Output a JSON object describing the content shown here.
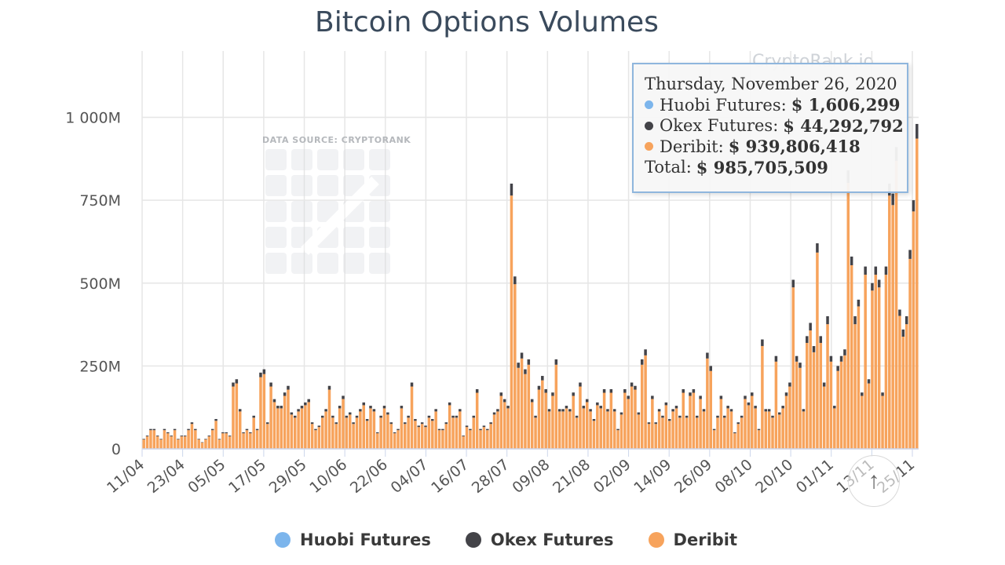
{
  "chart_data": {
    "type": "bar",
    "stacked": true,
    "title": "Bitcoin Options Volumes",
    "xlabel": "",
    "ylabel": "",
    "ylim": [
      0,
      1200000000
    ],
    "y_ticks": [
      0,
      250000000,
      500000000,
      750000000,
      1000000000
    ],
    "y_tick_labels": [
      "0",
      "250M",
      "500M",
      "750M",
      "1 000M"
    ],
    "x_tick_labels": [
      "11/04",
      "23/04",
      "05/05",
      "17/05",
      "29/05",
      "10/06",
      "22/06",
      "04/07",
      "16/07",
      "28/07",
      "09/08",
      "21/08",
      "02/09",
      "14/09",
      "26/09",
      "08/10",
      "20/10",
      "01/11",
      "13/11",
      "25/11"
    ],
    "grid": true,
    "legend_position": "bottom",
    "series": [
      {
        "name": "Huobi Futures",
        "color": "#7cb5ec"
      },
      {
        "name": "Okex Futures",
        "color": "#434348"
      },
      {
        "name": "Deribit",
        "color": "#f7a35c"
      }
    ],
    "approx_totals_M": [
      30,
      40,
      60,
      60,
      40,
      30,
      60,
      50,
      40,
      60,
      30,
      40,
      40,
      60,
      80,
      60,
      30,
      20,
      30,
      40,
      60,
      90,
      30,
      50,
      50,
      40,
      200,
      210,
      120,
      50,
      60,
      50,
      100,
      60,
      230,
      240,
      80,
      200,
      150,
      130,
      130,
      170,
      190,
      110,
      100,
      120,
      130,
      140,
      150,
      80,
      60,
      70,
      100,
      120,
      190,
      100,
      80,
      130,
      160,
      100,
      110,
      80,
      100,
      120,
      140,
      90,
      130,
      120,
      50,
      100,
      130,
      110,
      80,
      50,
      60,
      130,
      80,
      100,
      200,
      90,
      70,
      80,
      70,
      100,
      90,
      120,
      60,
      60,
      80,
      140,
      100,
      100,
      120,
      40,
      70,
      60,
      100,
      180,
      60,
      70,
      60,
      80,
      110,
      120,
      170,
      150,
      130,
      800,
      520,
      260,
      290,
      240,
      270,
      150,
      100,
      190,
      220,
      180,
      120,
      170,
      270,
      120,
      120,
      130,
      120,
      170,
      100,
      200,
      130,
      150,
      120,
      90,
      140,
      130,
      180,
      120,
      180,
      120,
      60,
      110,
      180,
      160,
      200,
      190,
      110,
      270,
      300,
      80,
      160,
      80,
      120,
      100,
      140,
      90,
      120,
      130,
      100,
      180,
      100,
      170,
      180,
      100,
      160,
      120,
      290,
      250,
      60,
      100,
      160,
      100,
      130,
      120,
      50,
      80,
      100,
      160,
      140,
      170,
      130,
      60,
      330,
      120,
      120,
      100,
      280,
      110,
      130,
      170,
      200,
      510,
      280,
      260,
      120,
      340,
      380,
      310,
      620,
      340,
      200,
      400,
      280,
      130,
      250,
      280,
      300,
      840,
      580,
      400,
      450,
      170,
      550,
      210,
      500,
      550,
      510,
      170,
      550,
      800,
      770,
      910,
      420,
      360,
      400,
      600,
      750,
      980
    ],
    "tooltip": {
      "date": "Thursday, November 26, 2020",
      "rows": [
        {
          "label": "Huobi Futures:",
          "value": "$ 1,606,299",
          "color": "#7cb5ec"
        },
        {
          "label": "Okex Futures:",
          "value": "$ 44,292,792",
          "color": "#434348"
        },
        {
          "label": "Deribit:",
          "value": "$ 939,806,418",
          "color": "#f7a35c"
        }
      ],
      "total_label": "Total:",
      "total_value": "$ 985,705,509"
    }
  },
  "watermark": {
    "source": "DATA SOURCE: CRYPTORANK",
    "brand": "CryptoRank.io"
  },
  "legend": [
    {
      "label": "Huobi Futures",
      "color": "#7cb5ec"
    },
    {
      "label": "Okex Futures",
      "color": "#434348"
    },
    {
      "label": "Deribit",
      "color": "#f7a35c"
    }
  ]
}
